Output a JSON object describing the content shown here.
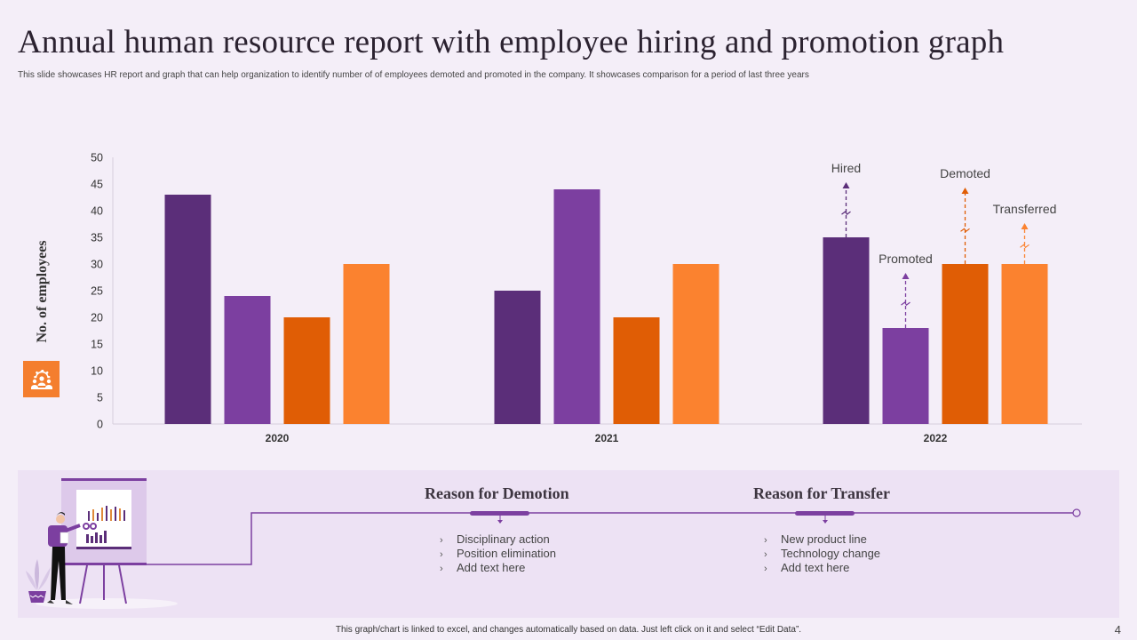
{
  "header": {
    "title": "Annual human resource report with employee hiring and promotion graph",
    "subtitle": "This slide showcases HR report and graph that can help organization to identify number of of employees demoted and promoted in the company. It showcases comparison for a period of last three years"
  },
  "icons": {
    "hr_icon": "team-gear-icon"
  },
  "chart_data": {
    "type": "bar",
    "title": "",
    "xlabel": "",
    "ylabel": "No. of employees",
    "ylim": [
      0,
      50
    ],
    "yticks": [
      0,
      5,
      10,
      15,
      20,
      25,
      30,
      35,
      40,
      45,
      50
    ],
    "categories": [
      "2020",
      "2021",
      "2022"
    ],
    "series": [
      {
        "name": "Hired",
        "color": "#5b2e79",
        "values": [
          43,
          25,
          35
        ]
      },
      {
        "name": "Promoted",
        "color": "#7c3fa0",
        "values": [
          24,
          44,
          18
        ]
      },
      {
        "name": "Demoted",
        "color": "#e05d05",
        "values": [
          20,
          20,
          30
        ]
      },
      {
        "name": "Transferred",
        "color": "#fb822f",
        "values": [
          30,
          30,
          30
        ]
      }
    ],
    "legend": "annotations above last category bars",
    "grid": false
  },
  "reasons": [
    {
      "title": "Reason for Demotion",
      "items": [
        "Disciplinary action",
        "Position elimination",
        "Add text here"
      ]
    },
    {
      "title": "Reason for Transfer",
      "items": [
        "New product line",
        "Technology change",
        "Add text here"
      ]
    }
  ],
  "footer": {
    "note": "This graph/chart is linked to excel, and changes automatically based on data. Just left click on it and select “Edit Data”.",
    "page_number": "4"
  },
  "colors": {
    "background": "#f4eef8",
    "panel": "#ede2f4",
    "accent_purple": "#7c3fa0",
    "dark_purple": "#5b2e79",
    "accent_orange": "#f47e2e"
  }
}
